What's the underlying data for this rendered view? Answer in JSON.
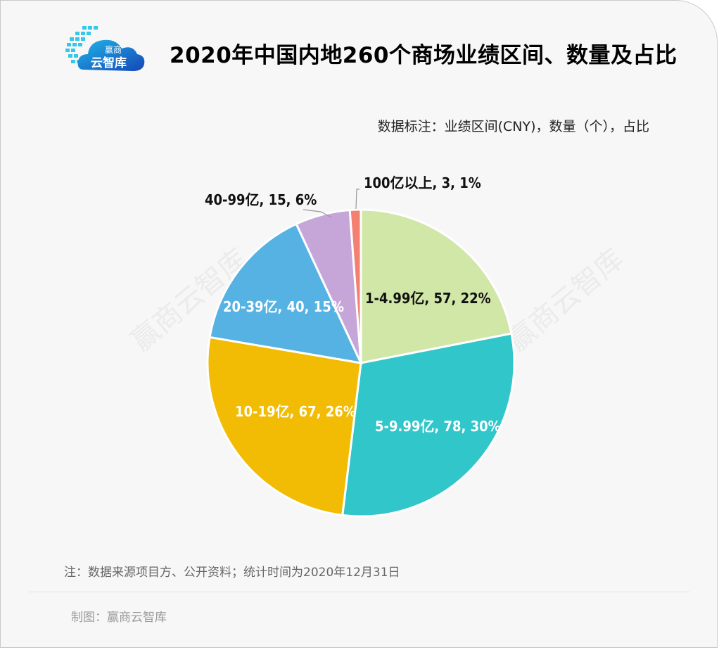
{
  "header": {
    "logo_text_top": "赢商",
    "logo_text_bottom": "云智库",
    "title": "2020年中国内地260个商场业绩区间、数量及占比"
  },
  "subtitle": "数据标注：业绩区间(CNY)，数量（个），占比",
  "watermark": "赢商云智库",
  "footer": {
    "note": "注：数据来源项目方、公开资料；统计时间为2020年12月31日",
    "credit": "制图：赢商云智库"
  },
  "colors": {
    "background": "#f7f7f7",
    "slice_1_4_99": "#d1e7a8",
    "slice_5_9_99": "#31c6ca",
    "slice_10_19": "#f2bb04",
    "slice_20_39": "#56b2e2",
    "slice_40_99": "#c6a6d9",
    "slice_100_plus": "#f48072"
  },
  "chart_data": {
    "type": "pie",
    "title": "2020年中国内地260个商场业绩区间、数量及占比",
    "subtitle": "数据标注：业绩区间(CNY)，数量（个），占比",
    "total": 260,
    "start_angle": "12 o'clock, clockwise",
    "categories": [
      "1-4.99亿",
      "5-9.99亿",
      "10-19亿",
      "20-39亿",
      "40-99亿",
      "100亿以上"
    ],
    "values": [
      57,
      78,
      67,
      40,
      15,
      3
    ],
    "percentages": [
      22,
      30,
      26,
      15,
      6,
      1
    ],
    "labels": [
      "1-4.99亿, 57, 22%",
      "5-9.99亿, 78, 30%",
      "10-19亿, 67, 26%",
      "20-39亿, 40, 15%",
      "40-99亿, 15, 6%",
      "100亿以上, 3, 1%"
    ],
    "colors": [
      "#d1e7a8",
      "#31c6ca",
      "#f2bb04",
      "#56b2e2",
      "#c6a6d9",
      "#f48072"
    ],
    "label_colors": [
      "#111111",
      "#ffffff",
      "#ffffff",
      "#ffffff",
      "#111111",
      "#111111"
    ],
    "legend": "none (data labels on slices)"
  }
}
